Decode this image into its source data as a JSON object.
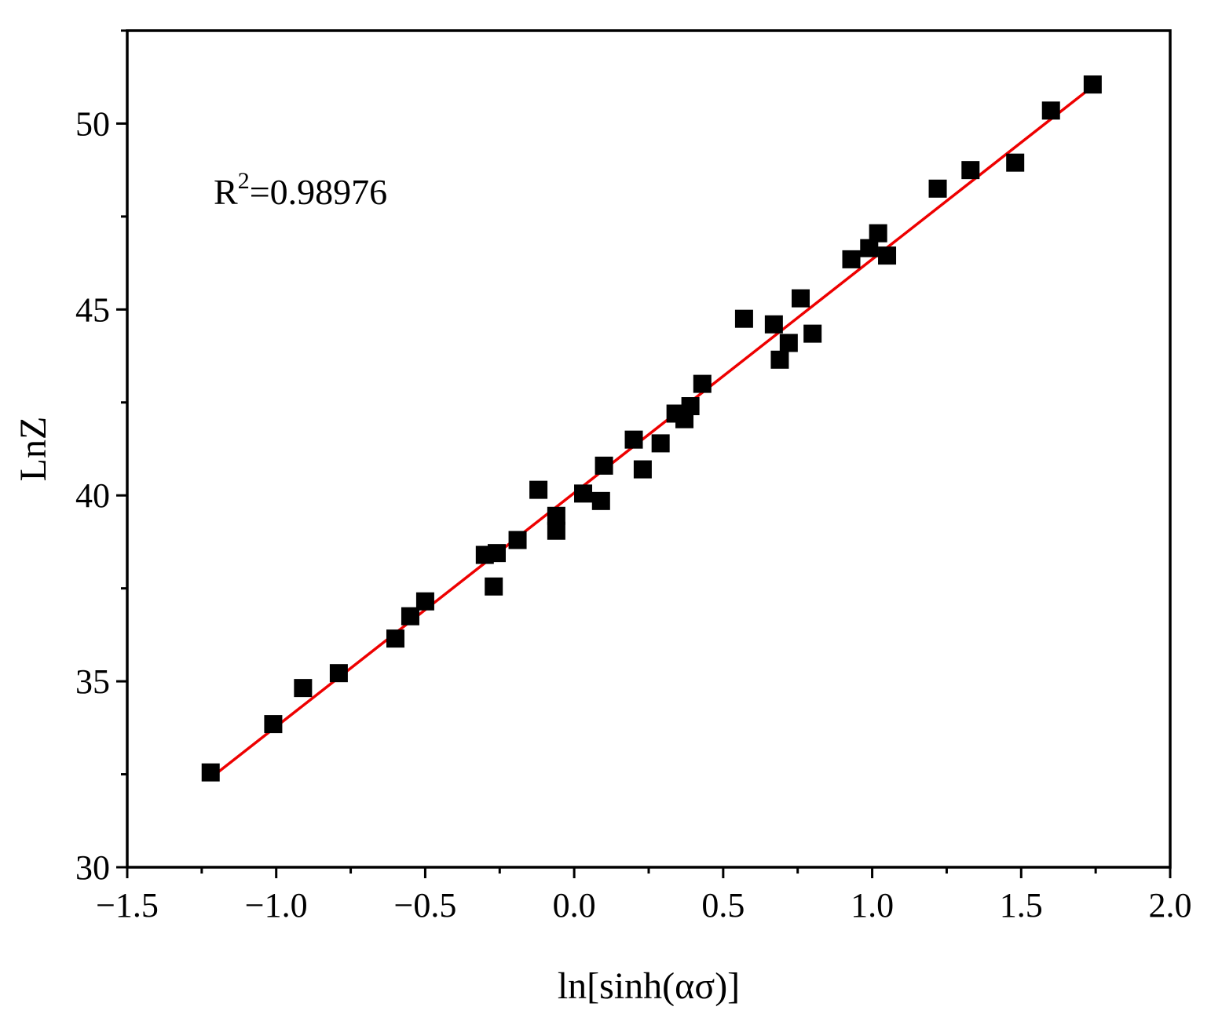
{
  "chart_data": {
    "type": "scatter",
    "title": "",
    "xlabel": "ln[sinh(ασ)]",
    "ylabel": "LnZ",
    "xlim": [
      -1.5,
      2.0
    ],
    "ylim": [
      30,
      52.5
    ],
    "xticks": [
      -1.5,
      -1.0,
      -0.5,
      0.0,
      0.5,
      1.0,
      1.5,
      2.0
    ],
    "xtick_labels": [
      "−1.5",
      "−1.0",
      "−0.5",
      "0.0",
      "0.5",
      "1.0",
      "1.5",
      "2.0"
    ],
    "yticks": [
      30,
      35,
      40,
      45,
      50
    ],
    "ytick_labels": [
      "30",
      "35",
      "40",
      "45",
      "50"
    ],
    "grid": false,
    "annotation": {
      "base": "R",
      "sup": "2",
      "value": "=0.98976"
    },
    "series": [
      {
        "marker": "square",
        "color": "#000000",
        "points": [
          [
            -1.22,
            32.55
          ],
          [
            -1.01,
            33.85
          ],
          [
            -0.91,
            34.82
          ],
          [
            -0.79,
            35.22
          ],
          [
            -0.6,
            36.15
          ],
          [
            -0.55,
            36.75
          ],
          [
            -0.5,
            37.15
          ],
          [
            -0.3,
            38.4
          ],
          [
            -0.26,
            38.45
          ],
          [
            -0.27,
            37.55
          ],
          [
            -0.19,
            38.8
          ],
          [
            -0.12,
            40.15
          ],
          [
            -0.06,
            39.45
          ],
          [
            -0.06,
            39.05
          ],
          [
            0.03,
            40.05
          ],
          [
            0.09,
            39.85
          ],
          [
            0.1,
            40.8
          ],
          [
            0.2,
            41.5
          ],
          [
            0.23,
            40.7
          ],
          [
            0.29,
            41.4
          ],
          [
            0.34,
            42.2
          ],
          [
            0.37,
            42.05
          ],
          [
            0.39,
            42.4
          ],
          [
            0.43,
            43.0
          ],
          [
            0.57,
            44.75
          ],
          [
            0.67,
            44.6
          ],
          [
            0.69,
            43.65
          ],
          [
            0.72,
            44.1
          ],
          [
            0.76,
            45.3
          ],
          [
            0.8,
            44.35
          ],
          [
            0.93,
            46.35
          ],
          [
            0.99,
            46.65
          ],
          [
            1.02,
            47.05
          ],
          [
            1.05,
            46.45
          ],
          [
            1.22,
            48.25
          ],
          [
            1.33,
            48.75
          ],
          [
            1.48,
            48.95
          ],
          [
            1.6,
            50.35
          ],
          [
            1.74,
            51.05
          ]
        ]
      },
      {
        "type": "line",
        "color": "#ee0000",
        "x": [
          -1.22,
          1.74
        ],
        "y": [
          32.4,
          51.0
        ]
      }
    ]
  }
}
